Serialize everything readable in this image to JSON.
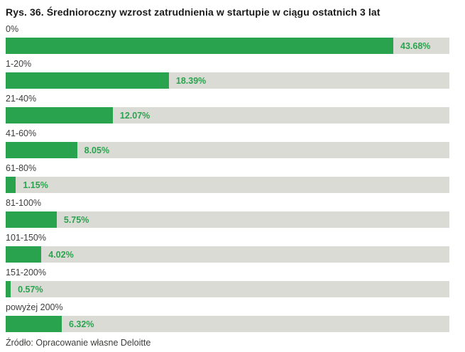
{
  "title": "Rys. 36. Średnioroczny wzrost zatrudnienia w startupie w ciągu ostatnich 3 lat",
  "source": "Źródło: Opracowanie własne Deloitte",
  "colors": {
    "bar_fill": "#2aa34e",
    "bar_track": "#dbdbd5",
    "value_text": "#2aa34e",
    "category_text": "#3d3d3c",
    "title_text": "#1a1a1a"
  },
  "chart_data": {
    "type": "bar",
    "orientation": "horizontal",
    "title": "Rys. 36. Średnioroczny wzrost zatrudnienia w startupie w ciągu ostatnich 3 lat",
    "categories": [
      "0%",
      "1-20%",
      "21-40%",
      "41-60%",
      "61-80%",
      "81-100%",
      "101-150%",
      "151-200%",
      "powyżej 200%"
    ],
    "values": [
      43.68,
      18.39,
      12.07,
      8.05,
      1.15,
      5.75,
      4.02,
      0.57,
      6.32
    ],
    "value_labels": [
      "43.68%",
      "18.39%",
      "12.07%",
      "8.05%",
      "1.15%",
      "5.75%",
      "4.02%",
      "0.57%",
      "6.32%"
    ],
    "xlabel": "",
    "ylabel": "",
    "xlim": [
      0,
      50
    ],
    "grid": false,
    "legend": false,
    "value_label_position": "outside-end"
  }
}
